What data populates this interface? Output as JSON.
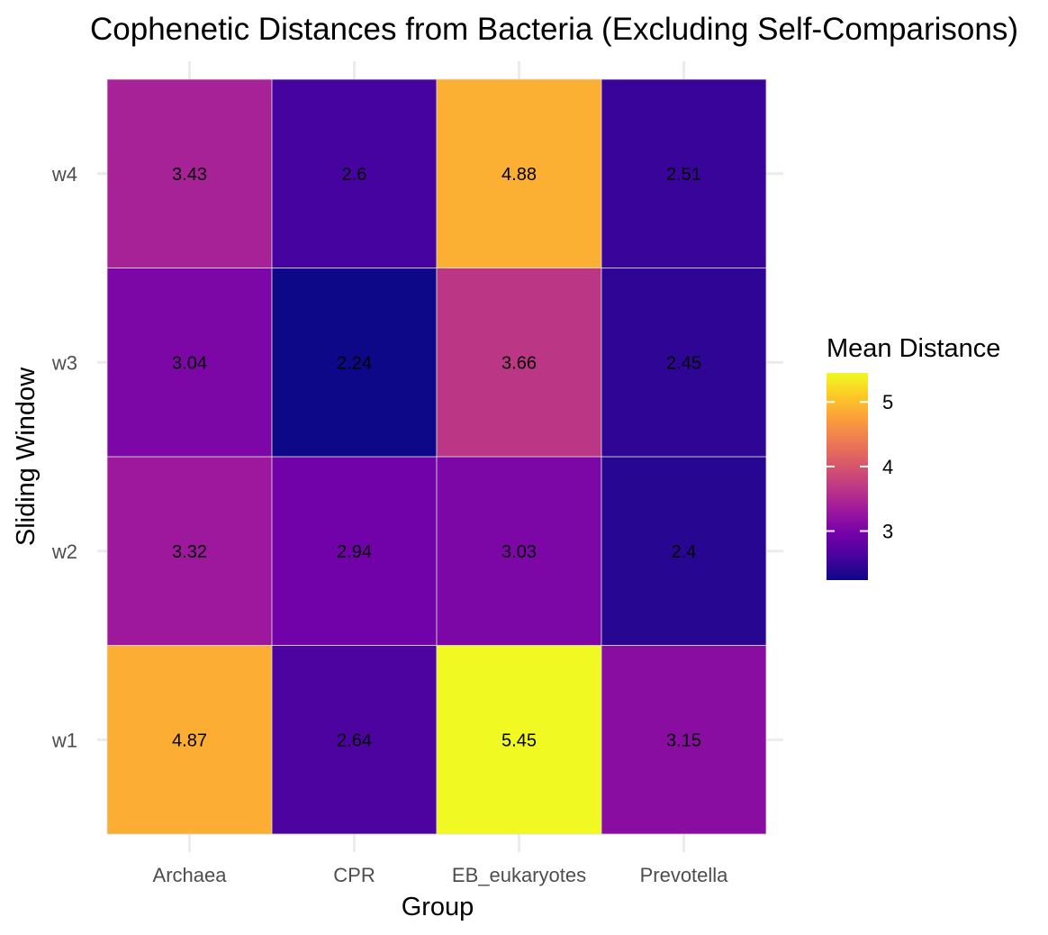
{
  "chart_data": {
    "type": "heatmap",
    "title": "Cophenetic Distances from Bacteria (Excluding Self-Comparisons)",
    "xlabel": "Group",
    "ylabel": "Sliding Window",
    "x_categories": [
      "Archaea",
      "CPR",
      "EB_eukaryotes",
      "Prevotella"
    ],
    "y_categories": [
      "w1",
      "w2",
      "w3",
      "w4"
    ],
    "values": [
      {
        "x": "Archaea",
        "y": "w1",
        "value": 4.87,
        "label": "4.87"
      },
      {
        "x": "CPR",
        "y": "w1",
        "value": 2.64,
        "label": "2.64"
      },
      {
        "x": "EB_eukaryotes",
        "y": "w1",
        "value": 5.45,
        "label": "5.45"
      },
      {
        "x": "Prevotella",
        "y": "w1",
        "value": 3.15,
        "label": "3.15"
      },
      {
        "x": "Archaea",
        "y": "w2",
        "value": 3.32,
        "label": "3.32"
      },
      {
        "x": "CPR",
        "y": "w2",
        "value": 2.94,
        "label": "2.94"
      },
      {
        "x": "EB_eukaryotes",
        "y": "w2",
        "value": 3.03,
        "label": "3.03"
      },
      {
        "x": "Prevotella",
        "y": "w2",
        "value": 2.4,
        "label": "2.4"
      },
      {
        "x": "Archaea",
        "y": "w3",
        "value": 3.04,
        "label": "3.04"
      },
      {
        "x": "CPR",
        "y": "w3",
        "value": 2.24,
        "label": "2.24"
      },
      {
        "x": "EB_eukaryotes",
        "y": "w3",
        "value": 3.66,
        "label": "3.66"
      },
      {
        "x": "Prevotella",
        "y": "w3",
        "value": 2.45,
        "label": "2.45"
      },
      {
        "x": "Archaea",
        "y": "w4",
        "value": 3.43,
        "label": "3.43"
      },
      {
        "x": "CPR",
        "y": "w4",
        "value": 2.6,
        "label": "2.6"
      },
      {
        "x": "EB_eukaryotes",
        "y": "w4",
        "value": 4.88,
        "label": "4.88"
      },
      {
        "x": "Prevotella",
        "y": "w4",
        "value": 2.51,
        "label": "2.51"
      }
    ],
    "legend": {
      "title": "Mean Distance",
      "placement": "right",
      "breaks": [
        3,
        4,
        5
      ],
      "range": [
        2.24,
        5.45
      ],
      "colormap": "plasma"
    },
    "grid": true
  },
  "colors": {
    "plasma": [
      "#0d0887",
      "#47039f",
      "#7301a8",
      "#9c179e",
      "#bd3786",
      "#d8576b",
      "#ed7953",
      "#fa9e3b",
      "#fdc926",
      "#f0f921"
    ],
    "grid": "#ebebeb",
    "tile_border": "#dddddd",
    "tick_text": "#4d4d4d"
  }
}
